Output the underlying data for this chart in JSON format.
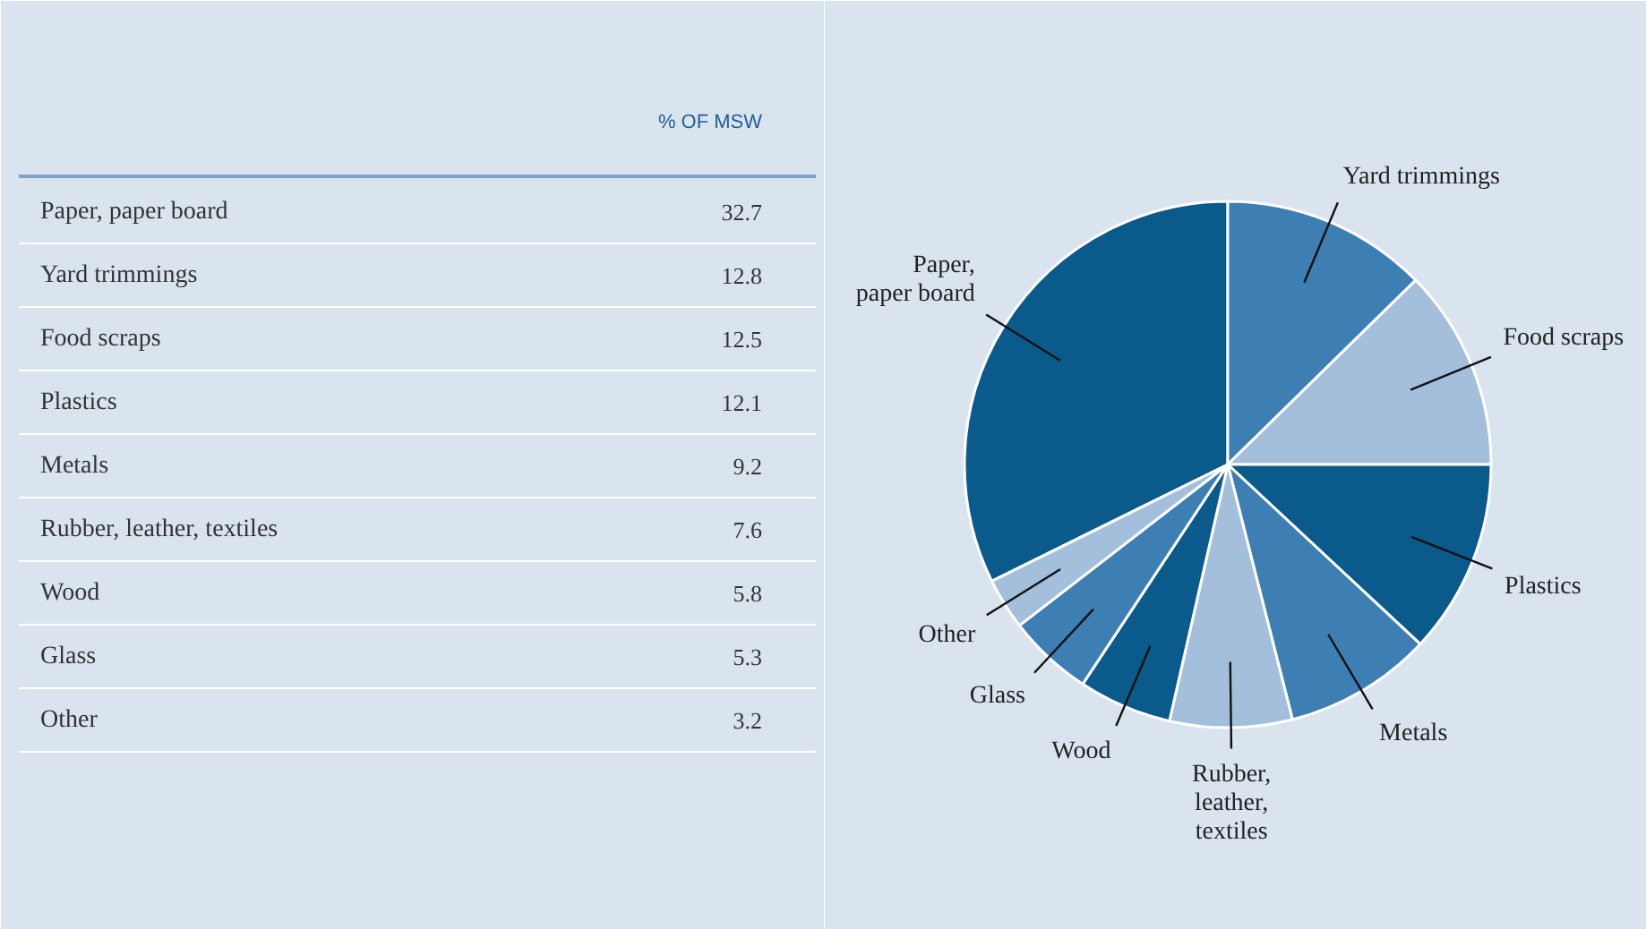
{
  "chart_data": [
    {
      "type": "other",
      "annotations": [
        "% OF MSW"
      ],
      "categories": [
        "Paper, paper board",
        "Yard trimmings",
        "Food scraps",
        "Plastics",
        "Metals",
        "Rubber, leather, textiles",
        "Wood",
        "Glass",
        "Other"
      ],
      "values": [
        32.7,
        12.8,
        12.5,
        12.1,
        9.2,
        7.6,
        5.8,
        5.3,
        3.2
      ],
      "data_labels": true
    },
    {
      "type": "pie",
      "categories": [
        "Paper, paper board",
        "Yard trimmings",
        "Food scraps",
        "Plastics",
        "Metals",
        "Rubber, leather, textiles",
        "Wood",
        "Glass",
        "Other"
      ],
      "values": [
        32.7,
        12.8,
        12.5,
        12.1,
        9.2,
        7.6,
        5.8,
        5.3,
        3.2
      ],
      "colors": [
        "#0b5a8c",
        "#3d7fb3",
        "#a3bfdb",
        "#0b5a8c",
        "#3d7fb3",
        "#a3bfdb",
        "#0b5a8c",
        "#3d7fb3",
        "#a3bfdb"
      ]
    }
  ]
}
